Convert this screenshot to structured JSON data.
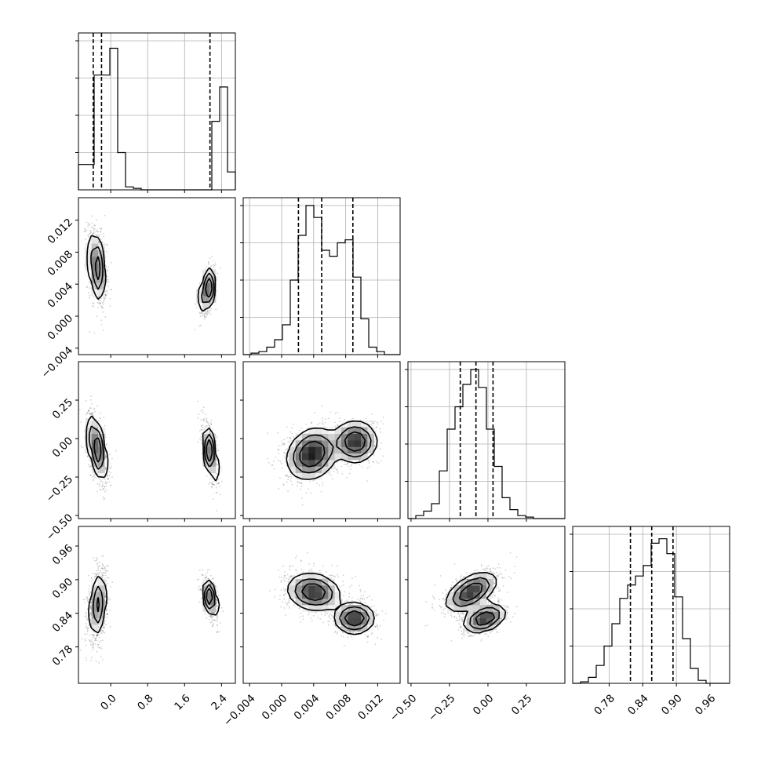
{
  "chart_data": {
    "type": "corner",
    "n_params": 4,
    "params": [
      {
        "range": [
          -0.7,
          2.7
        ],
        "ticks": [
          0.0,
          0.8,
          1.6,
          2.4
        ],
        "tick_labels": [
          "0.0",
          "0.8",
          "1.6",
          "2.4"
        ],
        "quantiles": [
          -0.38,
          -0.2,
          2.15
        ],
        "hist": {
          "edges_start": -0.7,
          "bin_width": 0.17,
          "counts": [
            0.17,
            0.17,
            0.77,
            0.77,
            0.95,
            0.25,
            0.02,
            0.01,
            0.0,
            0.0,
            0.0,
            0.0,
            0.0,
            0.0,
            0.0,
            0.0,
            0.0,
            0.46,
            0.69,
            0.12
          ]
        }
      },
      {
        "range": [
          -0.0048,
          0.0148
        ],
        "ticks": [
          -0.004,
          0.0,
          0.004,
          0.008,
          0.012
        ],
        "tick_labels": [
          "−0.004",
          "0.000",
          "0.004",
          "0.008",
          "0.012"
        ],
        "quantiles": [
          0.0021,
          0.005,
          0.0089
        ],
        "hist": {
          "edges_start": -0.0048,
          "bin_width": 0.00098,
          "counts": [
            0.0,
            0.01,
            0.02,
            0.05,
            0.1,
            0.2,
            0.5,
            0.8,
            1.0,
            0.92,
            0.7,
            0.66,
            0.75,
            0.77,
            0.52,
            0.24,
            0.05,
            0.02,
            0.0,
            0.0
          ]
        }
      },
      {
        "range": [
          -0.52,
          0.5
        ],
        "ticks": [
          -0.5,
          -0.25,
          0.0,
          0.25
        ],
        "tick_labels": [
          "−0.50",
          "−0.25",
          "0.00",
          "0.25"
        ],
        "quantiles": [
          -0.18,
          -0.078,
          0.033
        ],
        "hist": {
          "edges_start": -0.52,
          "bin_width": 0.051,
          "counts": [
            0.0,
            0.02,
            0.05,
            0.1,
            0.32,
            0.6,
            0.75,
            0.9,
            1.0,
            0.88,
            0.6,
            0.35,
            0.14,
            0.06,
            0.02,
            0.01,
            0.0,
            0.0,
            0.0,
            0.0
          ]
        }
      },
      {
        "range": [
          0.715,
          0.995
        ],
        "ticks": [
          0.78,
          0.84,
          0.9,
          0.96
        ],
        "tick_labels": [
          "0.78",
          "0.84",
          "0.90",
          "0.96"
        ],
        "quantiles": [
          0.818,
          0.856,
          0.894
        ],
        "hist": {
          "edges_start": 0.715,
          "bin_width": 0.014,
          "counts": [
            0.0,
            0.01,
            0.04,
            0.12,
            0.25,
            0.4,
            0.57,
            0.66,
            0.72,
            0.79,
            0.94,
            0.97,
            0.87,
            0.58,
            0.3,
            0.1,
            0.02,
            0.0,
            0.0,
            0.0
          ]
        }
      }
    ],
    "pairs": [
      {
        "row": 1,
        "col": 0,
        "clusters": [
          {
            "x": -0.3,
            "y": 0.0062,
            "sx": 0.09,
            "sy": 0.0021,
            "rho": -0.35,
            "w": 0.6
          },
          {
            "x": 2.1,
            "y": 0.0033,
            "sx": 0.075,
            "sy": 0.0013,
            "rho": 0.45,
            "w": 0.4
          }
        ]
      },
      {
        "row": 2,
        "col": 0,
        "clusters": [
          {
            "x": -0.3,
            "y": -0.06,
            "sx": 0.1,
            "sy": 0.1,
            "rho": -0.55,
            "w": 0.6
          },
          {
            "x": 2.15,
            "y": -0.09,
            "sx": 0.075,
            "sy": 0.09,
            "rho": -0.65,
            "w": 0.4
          }
        ]
      },
      {
        "row": 3,
        "col": 0,
        "clusters": [
          {
            "x": -0.28,
            "y": 0.855,
            "sx": 0.09,
            "sy": 0.028,
            "rho": 0.3,
            "w": 0.6
          },
          {
            "x": 2.15,
            "y": 0.868,
            "sx": 0.075,
            "sy": 0.016,
            "rho": -0.5,
            "w": 0.4
          }
        ]
      },
      {
        "row": 2,
        "col": 1,
        "clusters": [
          {
            "x": 0.0038,
            "y": -0.1,
            "sx": 0.0015,
            "sy": 0.08,
            "rho": 0.2,
            "w": 0.6
          },
          {
            "x": 0.0092,
            "y": -0.02,
            "sx": 0.0013,
            "sy": 0.065,
            "rho": 0.0,
            "w": 0.4
          }
        ]
      },
      {
        "row": 3,
        "col": 1,
        "clusters": [
          {
            "x": 0.004,
            "y": 0.878,
            "sx": 0.0016,
            "sy": 0.016,
            "rho": -0.15,
            "w": 0.6
          },
          {
            "x": 0.0091,
            "y": 0.831,
            "sx": 0.0012,
            "sy": 0.013,
            "rho": 0.0,
            "w": 0.4
          }
        ]
      },
      {
        "row": 3,
        "col": 2,
        "clusters": [
          {
            "x": -0.11,
            "y": 0.878,
            "sx": 0.08,
            "sy": 0.017,
            "rho": 0.55,
            "w": 0.6
          },
          {
            "x": -0.02,
            "y": 0.831,
            "sx": 0.065,
            "sy": 0.012,
            "rho": 0.4,
            "w": 0.4
          }
        ]
      }
    ]
  }
}
